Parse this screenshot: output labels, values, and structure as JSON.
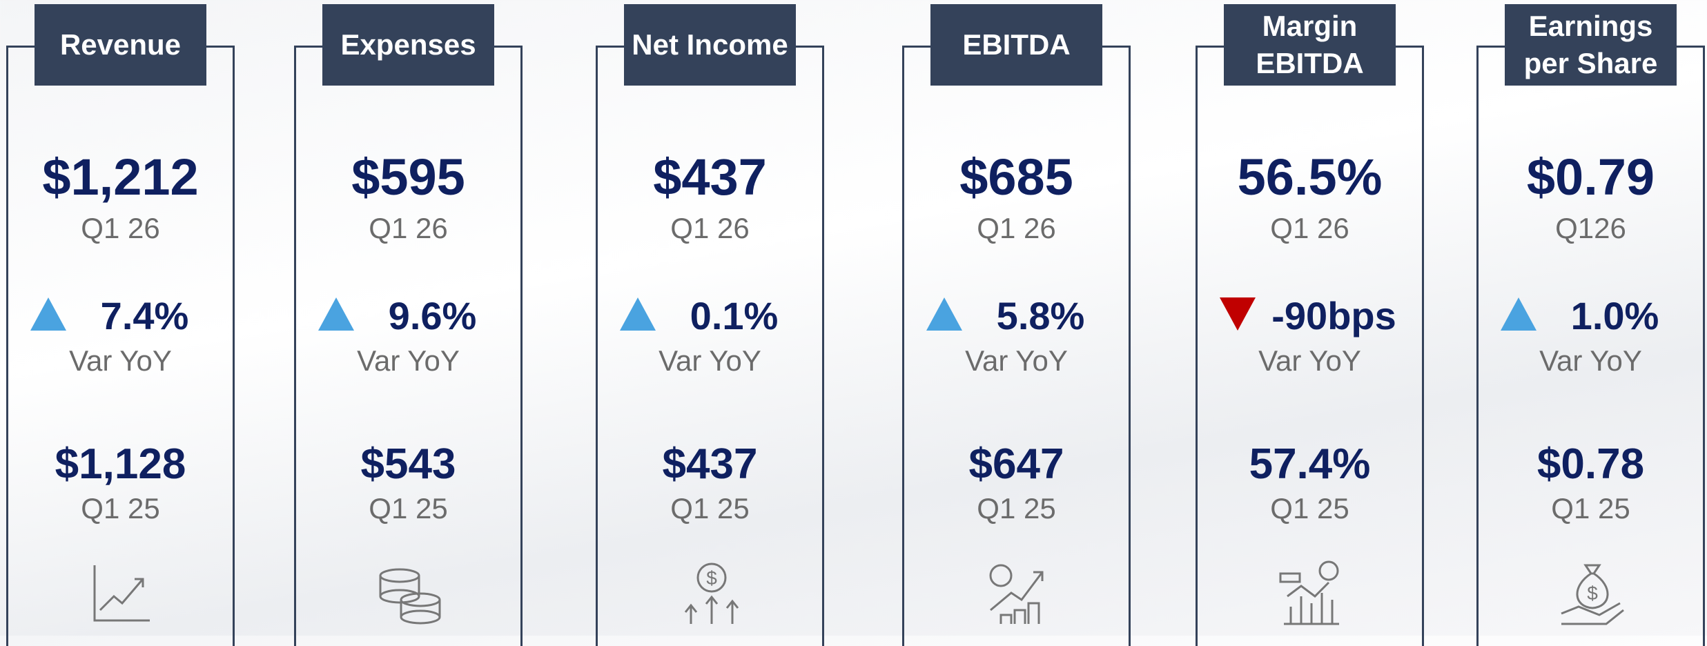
{
  "cards": [
    {
      "title": "Revenue",
      "value": "$1,212",
      "period": "Q1 26",
      "trend": "up",
      "variance": "7.4%",
      "variance_label": "Var YoY",
      "prior_value": "$1,128",
      "prior_period": "Q1 25"
    },
    {
      "title": "Expenses",
      "value": "$595",
      "period": "Q1 26",
      "trend": "up",
      "variance": "9.6%",
      "variance_label": "Var YoY",
      "prior_value": "$543",
      "prior_period": "Q1 25"
    },
    {
      "title": "Net Income",
      "value": "$437",
      "period": "Q1 26",
      "trend": "up",
      "variance": "0.1%",
      "variance_label": "Var YoY",
      "prior_value": "$437",
      "prior_period": "Q1 25"
    },
    {
      "title": "EBITDA",
      "value": "$685",
      "period": "Q1 26",
      "trend": "up",
      "variance": "5.8%",
      "variance_label": "Var YoY",
      "prior_value": "$647",
      "prior_period": "Q1 25"
    },
    {
      "title": "Margin EBITDA",
      "value": "56.5%",
      "period": "Q1 26",
      "trend": "down",
      "variance": "-90bps",
      "variance_label": "Var YoY",
      "prior_value": "57.4%",
      "prior_period": "Q1 25"
    },
    {
      "title": "Earnings per Share",
      "value": "$0.79",
      "period": "Q126",
      "trend": "up",
      "variance": "1.0%",
      "variance_label": "Var YoY",
      "prior_value": "$0.78",
      "prior_period": "Q1 25"
    }
  ]
}
